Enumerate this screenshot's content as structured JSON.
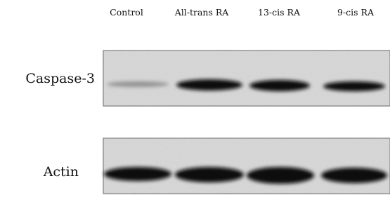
{
  "lanes": [
    "Control",
    "All-trans RA",
    "13-cis RA",
    "9-cis RA"
  ],
  "rows": [
    "Caspase-3",
    "Actin"
  ]
}
